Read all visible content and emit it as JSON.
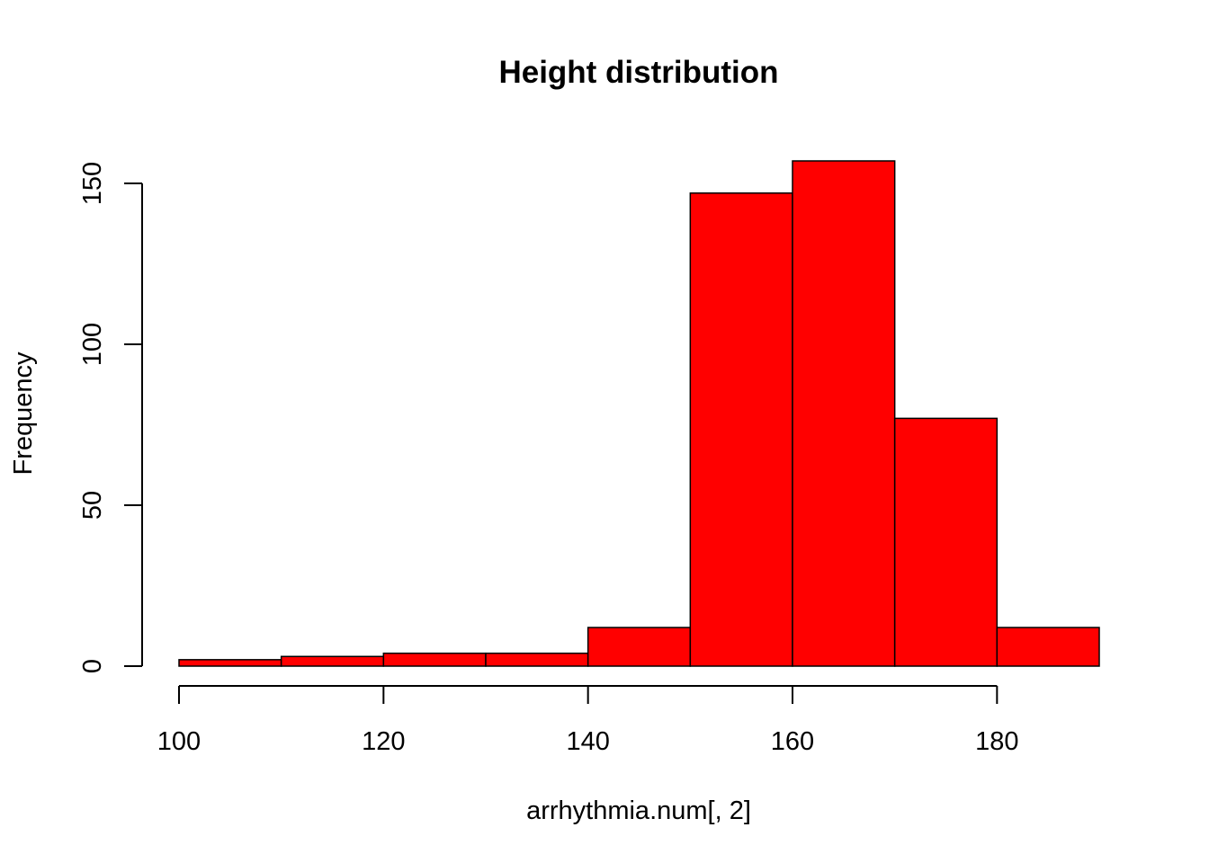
{
  "chart_data": {
    "type": "bar",
    "subtype": "histogram",
    "title": "Height distribution",
    "xlabel": "arrhythmia.num[, 2]",
    "ylabel": "Frequency",
    "bins": [
      {
        "start": 100,
        "end": 110,
        "count": 2
      },
      {
        "start": 110,
        "end": 120,
        "count": 3
      },
      {
        "start": 120,
        "end": 130,
        "count": 4
      },
      {
        "start": 130,
        "end": 140,
        "count": 4
      },
      {
        "start": 140,
        "end": 150,
        "count": 12
      },
      {
        "start": 150,
        "end": 160,
        "count": 147
      },
      {
        "start": 160,
        "end": 170,
        "count": 157
      },
      {
        "start": 170,
        "end": 180,
        "count": 77
      },
      {
        "start": 180,
        "end": 190,
        "count": 12
      }
    ],
    "xlim": [
      100,
      190
    ],
    "ylim": [
      0,
      157
    ],
    "x_ticks": [
      100,
      120,
      140,
      160,
      180
    ],
    "y_ticks": [
      0,
      50,
      100,
      150
    ],
    "grid": false,
    "legend": "none",
    "bar_color": "#FF0000",
    "border_color": "#000000"
  }
}
